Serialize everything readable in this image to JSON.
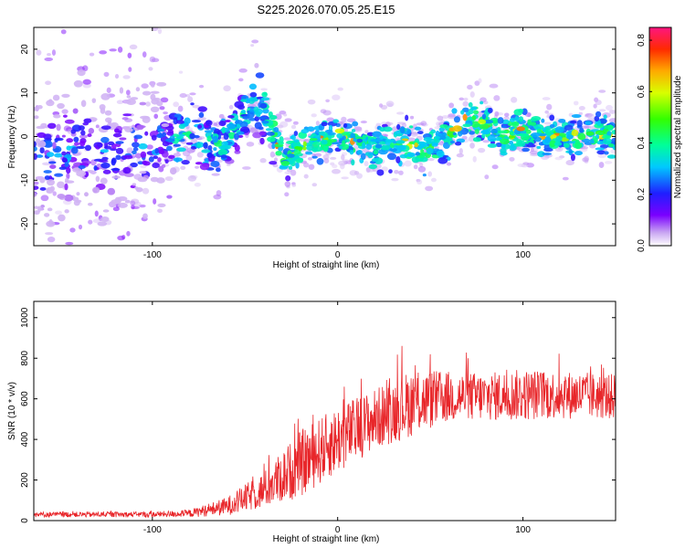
{
  "title": "S225.2026.070.05.25.E15",
  "chart_data": [
    {
      "type": "heatmap",
      "xlabel": "Height of straight line (km)",
      "ylabel": "Frequency (Hz)",
      "xlim": [
        -164,
        150
      ],
      "ylim": [
        -25,
        25
      ],
      "xticks": [
        -100,
        0,
        100
      ],
      "yticks": [
        -20,
        -10,
        0,
        10,
        20
      ],
      "colorbar": {
        "label": "Normalized spectral amplitude",
        "range": [
          0,
          0.85
        ],
        "ticks": [
          0.0,
          0.2,
          0.4,
          0.6,
          0.8
        ]
      },
      "ridge": [
        {
          "x": -160,
          "y": -6
        },
        {
          "x": -140,
          "y": -3
        },
        {
          "x": -120,
          "y": -4
        },
        {
          "x": -100,
          "y": -2
        },
        {
          "x": -80,
          "y": 1
        },
        {
          "x": -70,
          "y": -2
        },
        {
          "x": -60,
          "y": -1
        },
        {
          "x": -50,
          "y": 6
        },
        {
          "x": -40,
          "y": 7
        },
        {
          "x": -30,
          "y": -5
        },
        {
          "x": -20,
          "y": -3
        },
        {
          "x": -10,
          "y": -1
        },
        {
          "x": 0,
          "y": 1
        },
        {
          "x": 10,
          "y": -2
        },
        {
          "x": 20,
          "y": -3
        },
        {
          "x": 30,
          "y": -1
        },
        {
          "x": 40,
          "y": -2
        },
        {
          "x": 50,
          "y": -3
        },
        {
          "x": 60,
          "y": 0
        },
        {
          "x": 70,
          "y": 4
        },
        {
          "x": 80,
          "y": 3
        },
        {
          "x": 90,
          "y": 0
        },
        {
          "x": 100,
          "y": 2
        },
        {
          "x": 110,
          "y": 0
        },
        {
          "x": 120,
          "y": 0
        },
        {
          "x": 130,
          "y": 0
        },
        {
          "x": 140,
          "y": 1
        },
        {
          "x": 150,
          "y": 0
        }
      ]
    },
    {
      "type": "line",
      "xlabel": "Height of straight line (km)",
      "ylabel": "SNR (10 * v/v)",
      "xlim": [
        -164,
        150
      ],
      "ylim": [
        0,
        1080
      ],
      "xticks": [
        -100,
        0,
        100
      ],
      "yticks": [
        0,
        200,
        400,
        600,
        800,
        1000
      ],
      "color": "#e8262a",
      "envelope": [
        {
          "x": -164,
          "mean": 30,
          "spread": 18
        },
        {
          "x": -100,
          "mean": 30,
          "spread": 18
        },
        {
          "x": -80,
          "mean": 35,
          "spread": 25
        },
        {
          "x": -60,
          "mean": 70,
          "spread": 60
        },
        {
          "x": -40,
          "mean": 150,
          "spread": 120
        },
        {
          "x": -20,
          "mean": 280,
          "spread": 220
        },
        {
          "x": 0,
          "mean": 400,
          "spread": 220
        },
        {
          "x": 20,
          "mean": 500,
          "spread": 200
        },
        {
          "x": 40,
          "mean": 580,
          "spread": 220
        },
        {
          "x": 60,
          "mean": 610,
          "spread": 170
        },
        {
          "x": 80,
          "mean": 610,
          "spread": 160
        },
        {
          "x": 100,
          "mean": 620,
          "spread": 170
        },
        {
          "x": 120,
          "mean": 620,
          "spread": 160
        },
        {
          "x": 150,
          "mean": 610,
          "spread": 150
        }
      ]
    }
  ]
}
